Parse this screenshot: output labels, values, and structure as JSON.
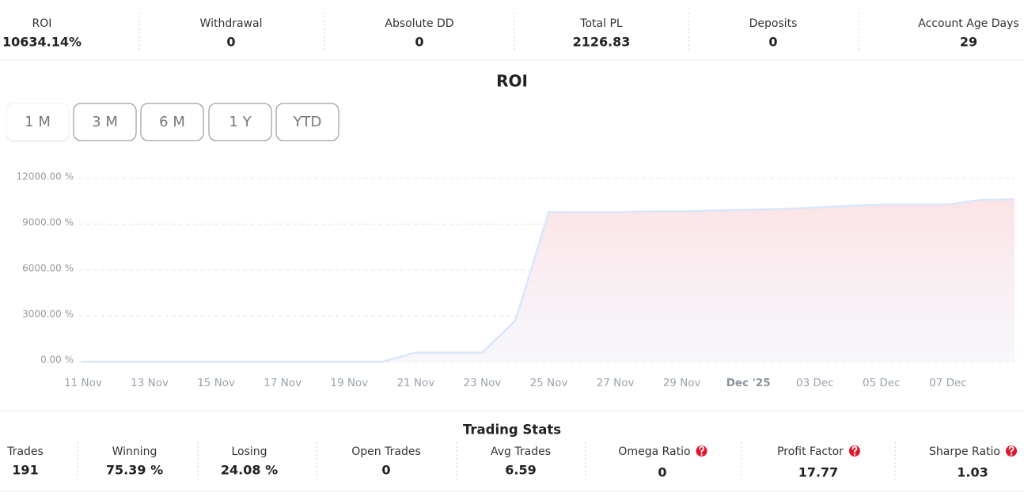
{
  "header_stats": [
    {
      "label": "ROI",
      "value": "10634.14%"
    },
    {
      "label": "Withdrawal",
      "value": "0"
    },
    {
      "label": "Absolute DD",
      "value": "0"
    },
    {
      "label": "Total PL",
      "value": "2126.83"
    },
    {
      "label": "Deposits",
      "value": "0"
    },
    {
      "label": "Account Age Days",
      "value": "29"
    }
  ],
  "chart_data": {
    "type": "area",
    "title": "ROI",
    "ranges": [
      {
        "label": "1 M",
        "selected": true
      },
      {
        "label": "3 M",
        "selected": false
      },
      {
        "label": "6 M",
        "selected": false
      },
      {
        "label": "1 Y",
        "selected": false
      },
      {
        "label": "YTD",
        "selected": false
      }
    ],
    "x": [
      "2025-11-11",
      "2025-11-12",
      "2025-11-13",
      "2025-11-14",
      "2025-11-15",
      "2025-11-16",
      "2025-11-17",
      "2025-11-18",
      "2025-11-19",
      "2025-11-20",
      "2025-11-21",
      "2025-11-22",
      "2025-11-23",
      "2025-11-24",
      "2025-11-25",
      "2025-11-26",
      "2025-11-27",
      "2025-11-28",
      "2025-11-29",
      "2025-11-30",
      "2025-12-01",
      "2025-12-02",
      "2025-12-03",
      "2025-12-04",
      "2025-12-05",
      "2025-12-06",
      "2025-12-07",
      "2025-12-08",
      "2025-12-09"
    ],
    "values": [
      0,
      0,
      0,
      0,
      0,
      0,
      0,
      0,
      0,
      0,
      600,
      600,
      600,
      2700,
      9800,
      9800,
      9800,
      9850,
      9850,
      9900,
      9950,
      10000,
      10100,
      10200,
      10300,
      10300,
      10300,
      10600,
      10634
    ],
    "line_color": "#d8e7fb",
    "fill_color": "#fce3e5",
    "xlim": [
      "2025-11-11",
      "2025-12-09"
    ],
    "xticks": [
      {
        "value": "2025-11-11",
        "label": "11 Nov"
      },
      {
        "value": "2025-11-13",
        "label": "13 Nov"
      },
      {
        "value": "2025-11-15",
        "label": "15 Nov"
      },
      {
        "value": "2025-11-17",
        "label": "17 Nov"
      },
      {
        "value": "2025-11-19",
        "label": "19 Nov"
      },
      {
        "value": "2025-11-21",
        "label": "21 Nov"
      },
      {
        "value": "2025-11-23",
        "label": "23 Nov"
      },
      {
        "value": "2025-11-25",
        "label": "25 Nov"
      },
      {
        "value": "2025-11-27",
        "label": "27 Nov"
      },
      {
        "value": "2025-11-29",
        "label": "29 Nov"
      },
      {
        "value": "2025-12-01",
        "label": "Dec '25",
        "emphasis": true
      },
      {
        "value": "2025-12-03",
        "label": "03 Dec"
      },
      {
        "value": "2025-12-05",
        "label": "05 Dec"
      },
      {
        "value": "2025-12-07",
        "label": "07 Dec"
      }
    ],
    "ylim": [
      0,
      12000
    ],
    "yticks": [
      {
        "value": 0,
        "label": "0.00 %"
      },
      {
        "value": 3000,
        "label": "3000.00 %"
      },
      {
        "value": 6000,
        "label": "6000.00 %"
      },
      {
        "value": 9000,
        "label": "9000.00 %"
      },
      {
        "value": 12000,
        "label": "12000.00 %"
      }
    ],
    "grid": true
  },
  "trading_stats": {
    "title": "Trading Stats",
    "items": [
      {
        "label": "Trades",
        "value": "191",
        "info_icon": false
      },
      {
        "label": "Winning",
        "value": "75.39 %",
        "info_icon": false
      },
      {
        "label": "Losing",
        "value": "24.08 %",
        "info_icon": false
      },
      {
        "label": "Open Trades",
        "value": "0",
        "info_icon": false
      },
      {
        "label": "Avg Trades",
        "value": "6.59",
        "info_icon": false
      },
      {
        "label": "Omega Ratio",
        "value": "0",
        "info_icon": true
      },
      {
        "label": "Profit Factor",
        "value": "17.77",
        "info_icon": true
      },
      {
        "label": "Sharpe Ratio",
        "value": "1.03",
        "info_icon": true
      }
    ]
  }
}
